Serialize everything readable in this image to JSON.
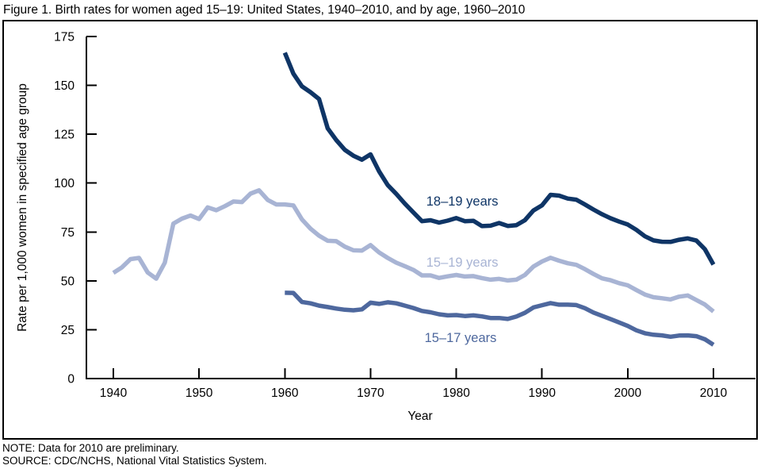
{
  "title": "Figure 1. Birth rates for women aged 15–19: United States, 1940–2010, and by age, 1960–2010",
  "notes": {
    "note": "NOTE: Data for 2010 are preliminary.",
    "source": "SOURCE: CDC/NCHS, National Vital Statistics System."
  },
  "chart_data": {
    "type": "line",
    "title": "Figure 1. Birth rates for women aged 15–19: United States, 1940–2010, and by age, 1960–2010",
    "xlabel": "Year",
    "ylabel": "Rate per 1,000 women in specified age group",
    "xlim": [
      1940,
      2010
    ],
    "ylim": [
      0,
      175
    ],
    "x_ticks": [
      1940,
      1950,
      1960,
      1970,
      1980,
      1990,
      2000,
      2010
    ],
    "y_ticks": [
      0,
      25,
      50,
      75,
      100,
      125,
      150,
      175
    ],
    "grid": false,
    "legend_position": "inline-annotations",
    "frame_color": "#000000",
    "series": [
      {
        "name": "15–19 years",
        "color": "#a8b4d4",
        "start_year": 1940,
        "values": [
          54.1,
          56.9,
          61.1,
          61.7,
          54.3,
          51.1,
          59.3,
          79.3,
          81.8,
          83.4,
          81.6,
          87.6,
          86.1,
          88.2,
          90.6,
          90.3,
          94.6,
          96.3,
          91.4,
          89.1,
          89.1,
          88.6,
          81.4,
          76.7,
          73.1,
          70.5,
          70.3,
          67.5,
          65.6,
          65.5,
          68.3,
          64.5,
          61.7,
          59.3,
          57.5,
          55.6,
          52.8,
          52.8,
          51.5,
          52.3,
          53.0,
          52.2,
          52.4,
          51.4,
          50.6,
          51.0,
          50.2,
          50.6,
          53.0,
          57.3,
          59.9,
          61.8,
          60.3,
          59.0,
          58.2,
          56.0,
          53.5,
          51.3,
          50.3,
          48.8,
          47.7,
          45.3,
          43.0,
          41.6,
          41.1,
          40.5,
          41.9,
          42.5,
          40.2,
          37.9,
          34.3
        ]
      },
      {
        "name": "18–19 years",
        "color": "#0f3566",
        "start_year": 1960,
        "values": [
          166.7,
          156.0,
          149.5,
          146.5,
          143.0,
          128.0,
          122.0,
          117.0,
          114.0,
          112.0,
          114.7,
          106.0,
          99.0,
          94.5,
          89.5,
          85.0,
          80.5,
          81.0,
          79.8,
          80.8,
          82.1,
          80.5,
          80.7,
          78.0,
          78.2,
          79.6,
          78.1,
          78.5,
          81.0,
          86.0,
          88.6,
          94.0,
          93.6,
          92.1,
          91.5,
          89.1,
          86.5,
          84.1,
          82.0,
          80.3,
          78.8,
          76.1,
          72.8,
          70.7,
          70.0,
          69.9,
          71.0,
          71.7,
          70.6,
          66.2,
          58.3
        ]
      },
      {
        "name": "15–17 years",
        "color": "#4e689e",
        "start_year": 1960,
        "values": [
          43.9,
          43.8,
          39.2,
          38.5,
          37.3,
          36.6,
          35.8,
          35.2,
          34.9,
          35.4,
          38.8,
          38.2,
          39.0,
          38.5,
          37.3,
          36.1,
          34.6,
          33.9,
          32.9,
          32.3,
          32.5,
          32.0,
          32.3,
          31.8,
          31.0,
          31.0,
          30.5,
          31.7,
          33.6,
          36.4,
          37.5,
          38.6,
          37.8,
          37.8,
          37.6,
          36.0,
          33.8,
          32.1,
          30.4,
          28.7,
          26.9,
          24.7,
          23.2,
          22.4,
          22.1,
          21.4,
          22.0,
          22.1,
          21.7,
          20.1,
          17.3
        ]
      }
    ],
    "annotations": [
      {
        "text": "18–19 years",
        "year": 1980.7,
        "value": 90.5,
        "color": "#0f3566"
      },
      {
        "text": "15–19 years",
        "year": 1980.7,
        "value": 59.3,
        "color": "#a8b4d4"
      },
      {
        "text": "15–17 years",
        "year": 1980.5,
        "value": 20.7,
        "color": "#4e689e"
      }
    ]
  }
}
